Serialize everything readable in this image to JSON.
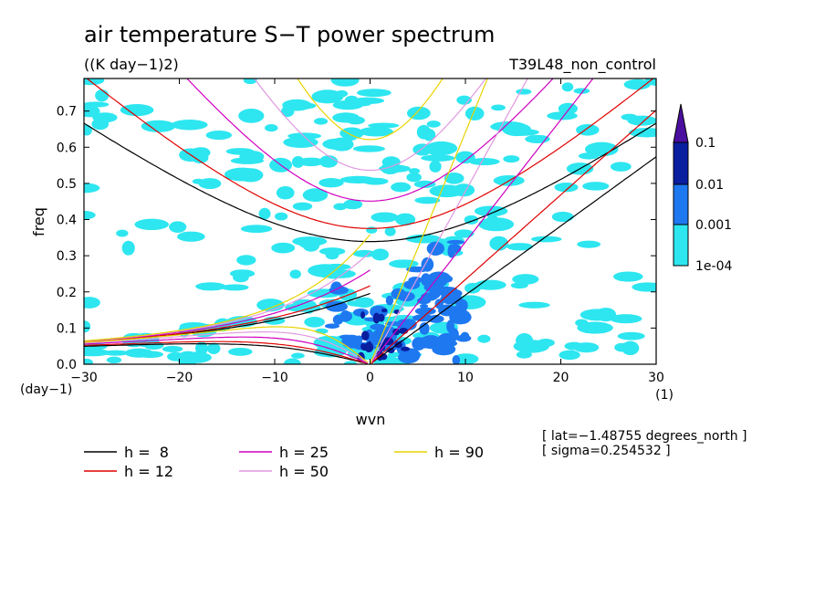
{
  "chart_data": {
    "type": "heatmap",
    "title": "air temperature S−T power spectrum",
    "units": "((K day−1)2)",
    "run_label": "T39L48_non_control",
    "xlabel": "wvn",
    "ylabel": "freq",
    "x_unit": "(1)",
    "y_unit": "(day−1)",
    "xlim": [
      -30,
      30
    ],
    "ylim": [
      0,
      0.79
    ],
    "x_ticks": [
      "−30",
      "−20",
      "−10",
      "0",
      "10",
      "20",
      "30"
    ],
    "y_ticks": [
      "0.0",
      "0.1",
      "0.2",
      "0.3",
      "0.4",
      "0.5",
      "0.6",
      "0.7"
    ],
    "colorbar": {
      "levels": [
        "0.1",
        "0.01",
        "0.001",
        "1e-04"
      ],
      "colors": [
        "#4b0fa0",
        "#0a1ea0",
        "#1e78f0",
        "#2de6f0"
      ]
    },
    "series": [
      {
        "name": "h =  8",
        "color": "#000000"
      },
      {
        "name": "h = 12",
        "color": "#e00000"
      },
      {
        "name": "h = 25",
        "color": "#d000c0"
      },
      {
        "name": "h = 50",
        "color": "#e098e0"
      },
      {
        "name": "h = 90",
        "color": "#e8d400"
      }
    ],
    "annotations": [
      "[ lat=−1.48755 degrees_north ]",
      "[ sigma=0.254532 ]"
    ]
  }
}
